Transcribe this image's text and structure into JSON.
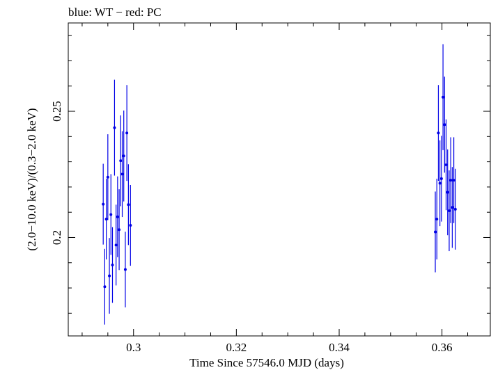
{
  "header": "blue: WT − red: PC",
  "colors": {
    "wt": "#0000e6",
    "pc": "#e60000",
    "axis": "#000000"
  },
  "chart_data": {
    "type": "scatter",
    "title": "blue: WT − red: PC",
    "xlabel": "Time Since 57546.0 MJD (days)",
    "ylabel": "(2.0−10.0 keV)/(0.3−2.0 keV)",
    "xlim": [
      0.2873,
      0.3694
    ],
    "ylim": [
      0.161,
      0.285
    ],
    "xticks": [
      0.3,
      0.32,
      0.34,
      0.36
    ],
    "xtick_labels": [
      "0.3",
      "0.32",
      "0.34",
      "0.36"
    ],
    "yticks": [
      0.2,
      0.25
    ],
    "ytick_labels": [
      "0.2",
      "0.25"
    ],
    "grid": false,
    "series": [
      {
        "name": "WT",
        "color": "#0000e6",
        "points": [
          {
            "x": 0.2941,
            "y": 0.2132,
            "err": 0.016
          },
          {
            "x": 0.2944,
            "y": 0.1805,
            "err": 0.015
          },
          {
            "x": 0.2947,
            "y": 0.2073,
            "err": 0.016
          },
          {
            "x": 0.295,
            "y": 0.2239,
            "err": 0.017
          },
          {
            "x": 0.2953,
            "y": 0.1848,
            "err": 0.015
          },
          {
            "x": 0.2956,
            "y": 0.2091,
            "err": 0.016
          },
          {
            "x": 0.2959,
            "y": 0.1891,
            "err": 0.015
          },
          {
            "x": 0.2963,
            "y": 0.2435,
            "err": 0.019
          },
          {
            "x": 0.2966,
            "y": 0.197,
            "err": 0.016
          },
          {
            "x": 0.2969,
            "y": 0.2082,
            "err": 0.016
          },
          {
            "x": 0.2972,
            "y": 0.2031,
            "err": 0.016
          },
          {
            "x": 0.2975,
            "y": 0.2304,
            "err": 0.018
          },
          {
            "x": 0.2978,
            "y": 0.2251,
            "err": 0.017
          },
          {
            "x": 0.2981,
            "y": 0.2323,
            "err": 0.018
          },
          {
            "x": 0.2984,
            "y": 0.1873,
            "err": 0.015
          },
          {
            "x": 0.2987,
            "y": 0.2414,
            "err": 0.019
          },
          {
            "x": 0.299,
            "y": 0.213,
            "err": 0.016
          },
          {
            "x": 0.2994,
            "y": 0.2048,
            "err": 0.016
          },
          {
            "x": 0.3587,
            "y": 0.2022,
            "err": 0.016
          },
          {
            "x": 0.359,
            "y": 0.2073,
            "err": 0.016
          },
          {
            "x": 0.3593,
            "y": 0.2414,
            "err": 0.019
          },
          {
            "x": 0.3596,
            "y": 0.2215,
            "err": 0.017
          },
          {
            "x": 0.3599,
            "y": 0.2233,
            "err": 0.017
          },
          {
            "x": 0.3602,
            "y": 0.2556,
            "err": 0.021
          },
          {
            "x": 0.3605,
            "y": 0.2447,
            "err": 0.019
          },
          {
            "x": 0.3608,
            "y": 0.2288,
            "err": 0.018
          },
          {
            "x": 0.3611,
            "y": 0.2179,
            "err": 0.017
          },
          {
            "x": 0.3614,
            "y": 0.2106,
            "err": 0.016
          },
          {
            "x": 0.3617,
            "y": 0.2227,
            "err": 0.017
          },
          {
            "x": 0.362,
            "y": 0.2119,
            "err": 0.016
          },
          {
            "x": 0.3623,
            "y": 0.2227,
            "err": 0.017
          },
          {
            "x": 0.3626,
            "y": 0.2112,
            "err": 0.016
          }
        ]
      }
    ]
  }
}
